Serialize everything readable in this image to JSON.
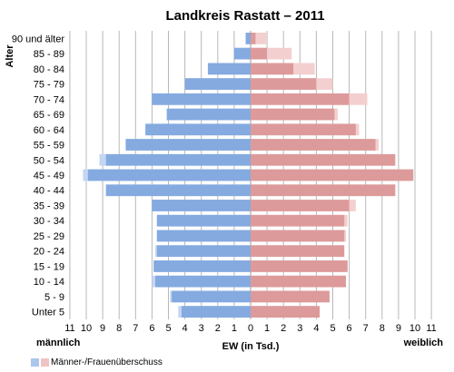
{
  "chart_data": {
    "type": "bar",
    "orientation": "horizontal",
    "title": "Landkreis Rastatt – 2011",
    "ylabel": "Alter",
    "xlabel": "EW (in Tsd.)",
    "left_label": "männlich",
    "right_label": "weiblich",
    "xlim": [
      -11,
      11
    ],
    "x_ticks": [
      "11",
      "10",
      "9",
      "8",
      "7",
      "6",
      "5",
      "4",
      "3",
      "2",
      "1",
      "0",
      "1",
      "2",
      "3",
      "4",
      "5",
      "6",
      "7",
      "8",
      "9",
      "10",
      "11"
    ],
    "grid": true,
    "legend_position": "bottom-left",
    "categories": [
      "90 und älter",
      "85 - 89",
      "80 - 84",
      "75 - 79",
      "70 - 74",
      "65 - 69",
      "60 - 64",
      "55 - 59",
      "50 - 54",
      "45 - 49",
      "40 - 44",
      "35 - 39",
      "30 - 34",
      "25 - 29",
      "20 - 24",
      "15 - 19",
      "10 - 14",
      "5 - 9",
      "Unter 5"
    ],
    "series": [
      {
        "name": "",
        "values": [
          0.3,
          1.0,
          2.6,
          4.0,
          6.0,
          5.1,
          6.4,
          7.6,
          9.2,
          10.2,
          8.8,
          6.0,
          5.7,
          5.7,
          5.8,
          5.9,
          6.0,
          4.9,
          4.4
        ]
      },
      {
        "name": "",
        "values": [
          1.0,
          2.5,
          3.9,
          5.0,
          7.1,
          5.3,
          6.6,
          7.8,
          8.8,
          9.9,
          8.8,
          6.4,
          5.9,
          5.8,
          5.7,
          5.9,
          5.8,
          4.8,
          4.2
        ]
      }
    ],
    "legend": [
      {
        "label": "Männer-/Frauenüberschuss",
        "colors": [
          "#aac7ec",
          "#f0c4c4"
        ]
      }
    ],
    "colors": {
      "male": "#84aae0",
      "female": "#dd9a9a",
      "male_surplus": "#c3d6f2",
      "female_surplus": "#f3cfcf",
      "grid": "#b8b8b8"
    }
  }
}
